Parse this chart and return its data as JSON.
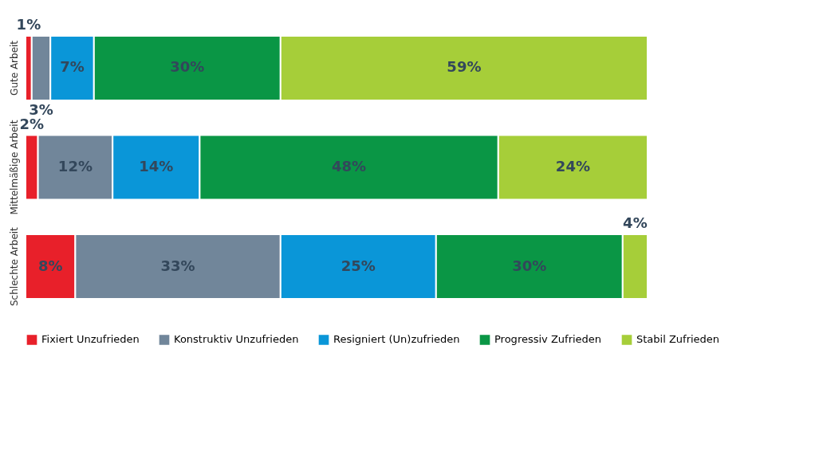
{
  "chart_data": {
    "type": "bar",
    "orientation": "horizontal",
    "stacked": true,
    "legend": "bottom",
    "categories": [
      "Gute Arbeit",
      "Mittelmäßige Arbeit",
      "Schlechte Arbeit"
    ],
    "series": [
      {
        "name": "Fixiert Unzufrieden",
        "color": "#e8202a",
        "values": [
          1,
          2,
          8
        ],
        "value_labels": [
          "1%",
          "2%",
          "8%"
        ]
      },
      {
        "name": "Konstruktiv Unzufrieden",
        "color": "#71869a",
        "values": [
          3,
          12,
          33
        ],
        "value_labels": [
          "3%",
          "12%",
          "33%"
        ]
      },
      {
        "name": "Resigniert (Un)zufrieden",
        "color": "#0a96d8",
        "values": [
          7,
          14,
          25
        ],
        "value_labels": [
          "7%",
          "14%",
          "25%"
        ]
      },
      {
        "name": "Progressiv Zufrieden",
        "color": "#0a9645",
        "values": [
          30,
          48,
          30
        ],
        "value_labels": [
          "30%",
          "48%",
          "30%"
        ]
      },
      {
        "name": "Stabil Zufrieden",
        "color": "#a6ce39",
        "values": [
          59,
          24,
          4
        ],
        "value_labels": [
          "59%",
          "24%",
          "4%"
        ]
      }
    ]
  }
}
